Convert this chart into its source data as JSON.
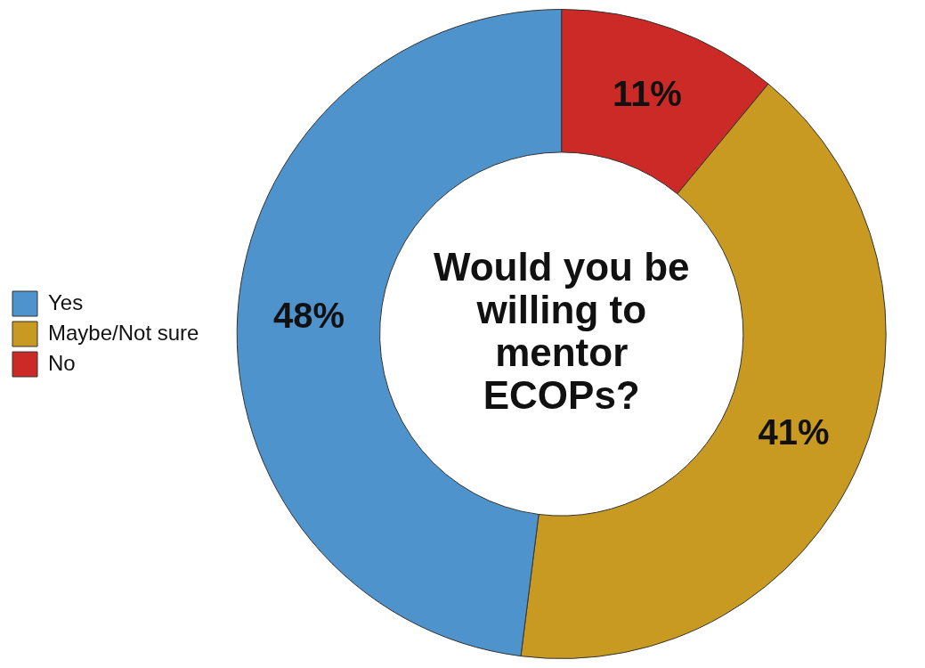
{
  "chart_data": {
    "type": "donut",
    "title": "Would you be willing to mentor ECOPs?",
    "categories": [
      "Yes",
      "Maybe/Not sure",
      "No"
    ],
    "values": [
      48,
      41,
      11
    ],
    "colors": [
      "#4f93cc",
      "#c99a22",
      "#cc2a27"
    ],
    "value_labels": [
      "48%",
      "41%",
      "11%"
    ],
    "legend": "left"
  }
}
